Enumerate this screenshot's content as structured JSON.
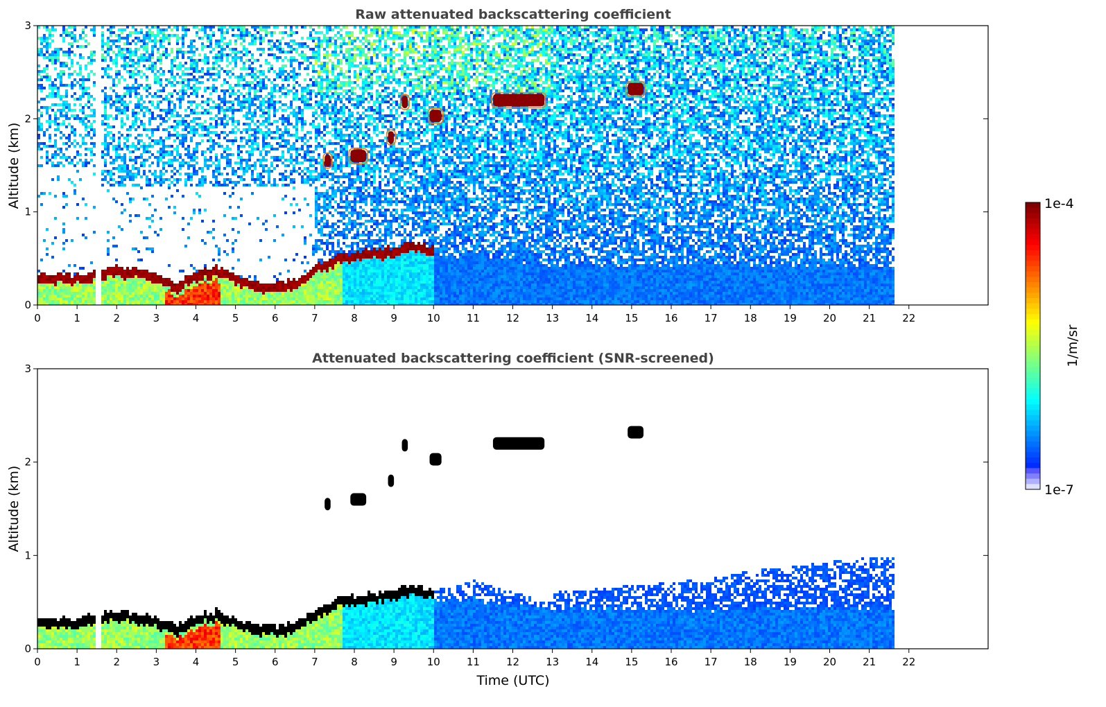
{
  "chart_data": [
    {
      "type": "heatmap",
      "title": "Raw attenuated backscattering coefficient",
      "xlabel": "",
      "ylabel": "Altitude (km)",
      "xlim": [
        0,
        24
      ],
      "ylim": [
        0,
        3
      ],
      "xticks": [
        "0",
        "1",
        "2",
        "3",
        "4",
        "5",
        "6",
        "7",
        "8",
        "9",
        "10",
        "11",
        "12",
        "13",
        "14",
        "15",
        "16",
        "17",
        "18",
        "19",
        "20",
        "21",
        "22"
      ],
      "yticks": [
        "0",
        "1",
        "2",
        "3"
      ],
      "data_end_hour": 21.6,
      "data_gap_hours": [
        1.45,
        1.55
      ],
      "boundary_layer_top_km": [
        [
          0,
          0.3
        ],
        [
          0.5,
          0.3
        ],
        [
          1,
          0.3
        ],
        [
          1.5,
          0.35
        ],
        [
          2,
          0.38
        ],
        [
          2.5,
          0.35
        ],
        [
          3,
          0.3
        ],
        [
          3.5,
          0.22
        ],
        [
          4,
          0.35
        ],
        [
          4.5,
          0.38
        ],
        [
          5,
          0.3
        ],
        [
          5.5,
          0.22
        ],
        [
          6,
          0.22
        ],
        [
          6.5,
          0.25
        ],
        [
          7,
          0.4
        ],
        [
          7.5,
          0.5
        ],
        [
          8,
          0.55
        ],
        [
          8.5,
          0.57
        ],
        [
          9,
          0.6
        ],
        [
          9.5,
          0.65
        ],
        [
          10,
          0.6
        ],
        [
          11,
          0.6
        ],
        [
          12,
          0.55
        ],
        [
          13,
          0.5
        ],
        [
          14,
          0.5
        ],
        [
          15,
          0.5
        ],
        [
          16,
          0.5
        ],
        [
          17,
          0.5
        ],
        [
          18,
          0.5
        ],
        [
          19,
          0.5
        ],
        [
          20,
          0.5
        ],
        [
          21,
          0.5
        ],
        [
          21.6,
          0.5
        ]
      ],
      "clouds": [
        {
          "t_start": 7.25,
          "t_end": 7.4,
          "alt_km": 1.55
        },
        {
          "t_start": 7.9,
          "t_end": 8.3,
          "alt_km": 1.6
        },
        {
          "t_start": 8.85,
          "t_end": 9.0,
          "alt_km": 1.8
        },
        {
          "t_start": 9.2,
          "t_end": 9.35,
          "alt_km": 2.18
        },
        {
          "t_start": 9.9,
          "t_end": 10.2,
          "alt_km": 2.03
        },
        {
          "t_start": 11.5,
          "t_end": 12.8,
          "alt_km": 2.2
        },
        {
          "t_start": 14.9,
          "t_end": 15.3,
          "alt_km": 2.32
        }
      ]
    },
    {
      "type": "heatmap",
      "title": "Attenuated backscattering coefficient (SNR-screened)",
      "xlabel": "Time (UTC)",
      "ylabel": "Altitude (km)",
      "xlim": [
        0,
        24
      ],
      "ylim": [
        0,
        3
      ],
      "xticks": [
        "0",
        "1",
        "2",
        "3",
        "4",
        "5",
        "6",
        "7",
        "8",
        "9",
        "10",
        "11",
        "12",
        "13",
        "14",
        "15",
        "16",
        "17",
        "18",
        "19",
        "20",
        "21",
        "22"
      ],
      "yticks": [
        "0",
        "1",
        "2",
        "3"
      ],
      "data_end_hour": 21.6,
      "screened_top_km": [
        [
          0,
          0.4
        ],
        [
          1,
          0.45
        ],
        [
          2,
          0.45
        ],
        [
          3,
          0.4
        ],
        [
          4,
          0.45
        ],
        [
          5,
          0.45
        ],
        [
          6,
          0.45
        ],
        [
          7,
          0.55
        ],
        [
          8,
          0.62
        ],
        [
          9,
          0.65
        ],
        [
          10,
          0.65
        ],
        [
          10.5,
          0.68
        ],
        [
          11,
          0.75
        ],
        [
          11.5,
          0.68
        ],
        [
          12,
          0.62
        ],
        [
          12.5,
          0.55
        ],
        [
          12.8,
          0.5
        ],
        [
          13,
          0.62
        ],
        [
          14,
          0.65
        ],
        [
          15,
          0.7
        ],
        [
          16,
          0.72
        ],
        [
          17,
          0.78
        ],
        [
          18,
          0.85
        ],
        [
          19,
          0.9
        ],
        [
          20,
          0.95
        ],
        [
          21,
          1.0
        ],
        [
          21.6,
          1.0
        ]
      ]
    }
  ],
  "colorbar": {
    "max_label": "1e-4",
    "min_label": "1e-7",
    "units_label": "1/m/sr",
    "colormap": "jet",
    "scale": "log"
  },
  "colors": {
    "title": "#444444",
    "cloud_core_screened": "#000000",
    "max": "#800000",
    "min": "#dde0ff"
  }
}
